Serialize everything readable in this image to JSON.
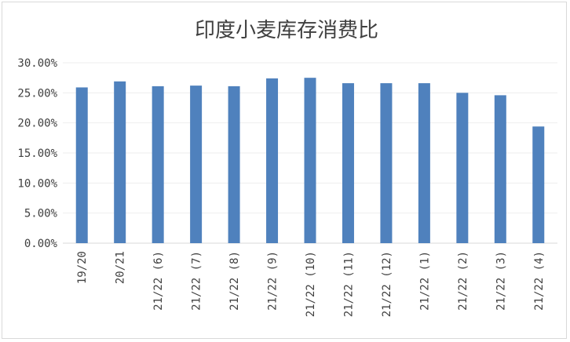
{
  "chart_data": {
    "type": "bar",
    "title": "印度小麦库存消费比",
    "categories": [
      "19/20",
      "20/21",
      "21/22 (6)",
      "21/22 (7)",
      "21/22 (8)",
      "21/22 (9)",
      "21/22 (10)",
      "21/22 (11)",
      "21/22 (12)",
      "21/22 (1)",
      "21/22 (2)",
      "21/22 (3)",
      "21/22 (4)"
    ],
    "series": [
      {
        "values": [
          0.259,
          0.269,
          0.261,
          0.262,
          0.261,
          0.274,
          0.275,
          0.266,
          0.266,
          0.266,
          0.25,
          0.246,
          0.194
        ]
      }
    ],
    "y_ticks": [
      "0.00%",
      "5.00%",
      "10.00%",
      "15.00%",
      "20.00%",
      "25.00%",
      "30.00%"
    ],
    "ylim": [
      0,
      0.3
    ],
    "grid": true,
    "legend": "none",
    "colors": {
      "bar": "#4f81bd",
      "grid": "#eeeeee",
      "axis": "#d9d9d9",
      "text": "#404040"
    }
  }
}
